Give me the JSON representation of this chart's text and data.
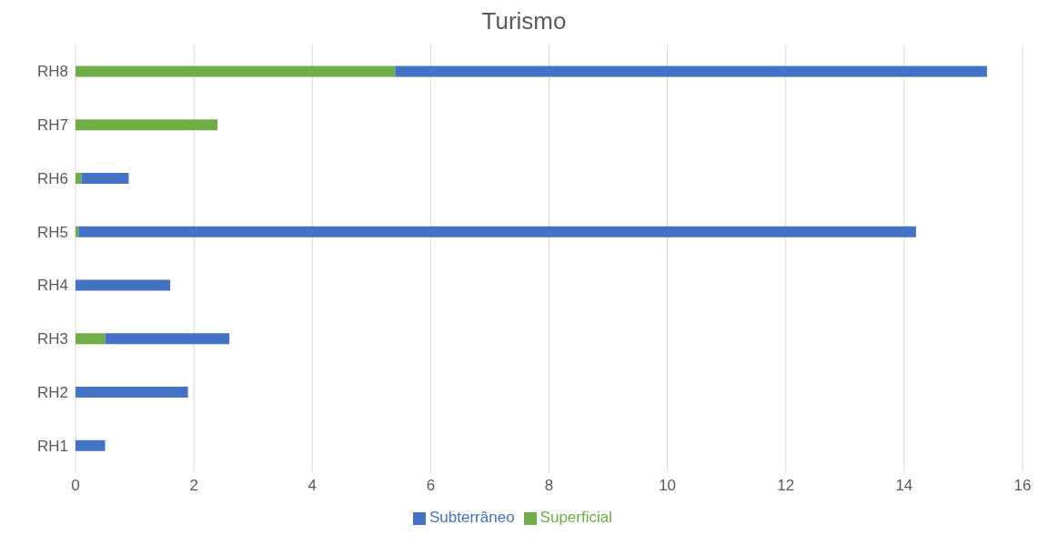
{
  "chart_data": {
    "type": "bar",
    "title": "Turismo",
    "orientation": "horizontal",
    "stacked": true,
    "categories": [
      "RH8",
      "RH7",
      "RH6",
      "RH5",
      "RH4",
      "RH3",
      "RH2",
      "RH1"
    ],
    "series": [
      {
        "name": "Superficial",
        "color": "#70ad47",
        "values": [
          5.4,
          2.4,
          0.1,
          0.05,
          0,
          0.5,
          0,
          0
        ]
      },
      {
        "name": "Subterrâneo",
        "color": "#4472c4",
        "values": [
          10,
          0,
          0.8,
          14.15,
          1.6,
          2.1,
          1.9,
          0.5
        ]
      }
    ],
    "xlim": [
      0,
      16
    ],
    "xticks": [
      0,
      2,
      4,
      6,
      8,
      10,
      12,
      14,
      16
    ],
    "grid": "x",
    "legend": "bottom"
  }
}
